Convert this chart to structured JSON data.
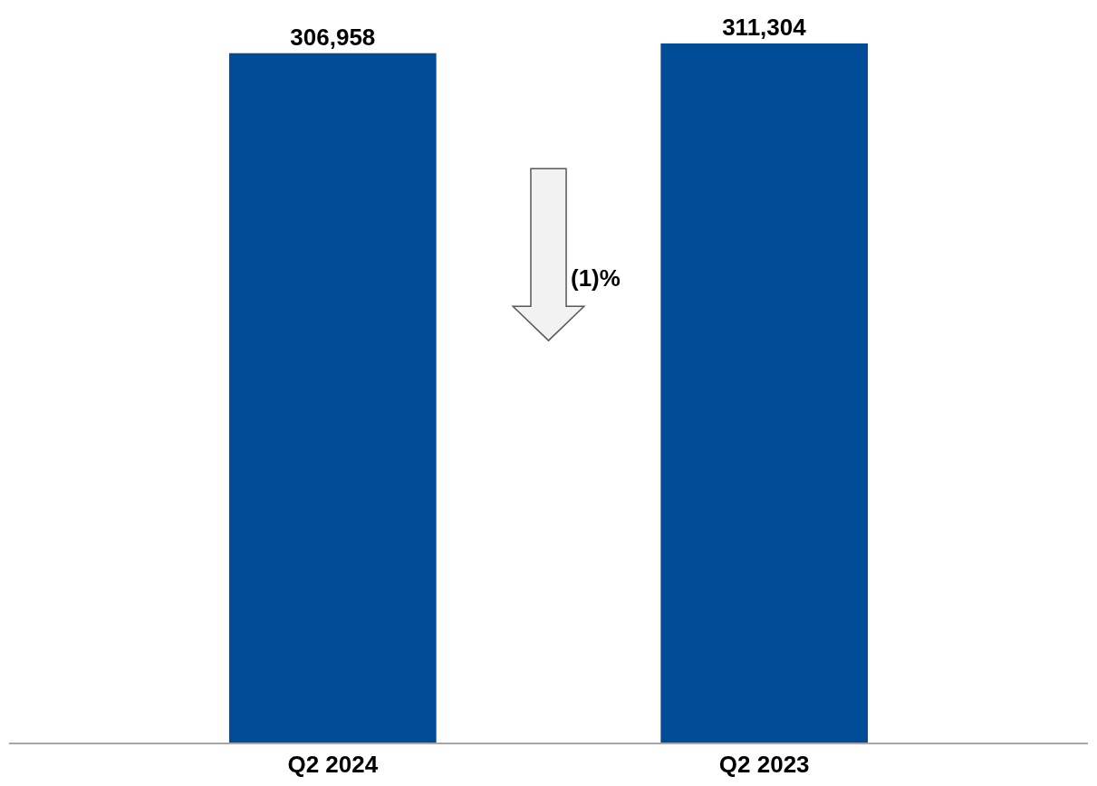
{
  "chart_data": {
    "type": "bar",
    "categories": [
      "Q2 2024",
      "Q2 2023"
    ],
    "values": [
      306958,
      311304
    ],
    "value_labels": [
      "306,958",
      "311,304"
    ],
    "color": "#004c97",
    "annotations": [
      "(1)%"
    ]
  }
}
